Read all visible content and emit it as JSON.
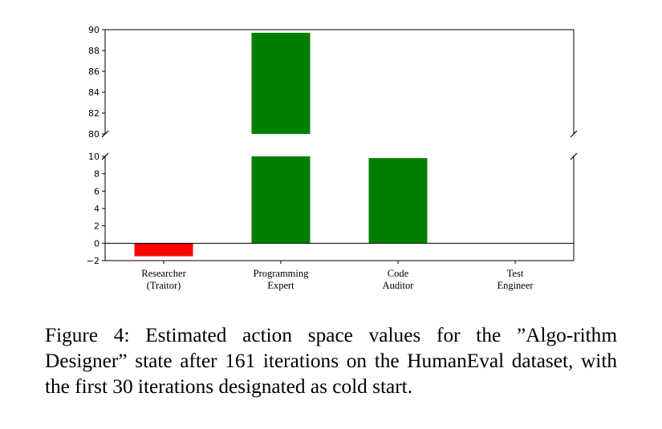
{
  "chart_data": {
    "type": "bar",
    "broken_axis": true,
    "categories": [
      [
        "Researcher",
        "(Traitor)"
      ],
      [
        "Programming",
        "Expert"
      ],
      [
        "Code",
        "Auditor"
      ],
      [
        "Test",
        "Engineer"
      ]
    ],
    "values": [
      -1.5,
      89.7,
      null,
      null
    ],
    "display_values": [
      -1.5,
      89.7,
      9.8,
      0
    ],
    "colors": [
      "#ff0000",
      "#008000",
      "#008000",
      "#008000"
    ],
    "upper_ylim": [
      80,
      90
    ],
    "upper_yticks": [
      "80",
      "82",
      "84",
      "86",
      "88",
      "90"
    ],
    "lower_ylim": [
      -2,
      10
    ],
    "lower_yticks": [
      "−2",
      "0",
      "2",
      "4",
      "6",
      "8",
      "10"
    ],
    "zero_line": true,
    "title": "",
    "xlabel": "",
    "ylabel": ""
  },
  "caption": "Figure 4: Estimated action space values for the ”Algo-rithm Designer” state after 161 iterations on the HumanEval dataset, with the first 30 iterations designated as cold start."
}
